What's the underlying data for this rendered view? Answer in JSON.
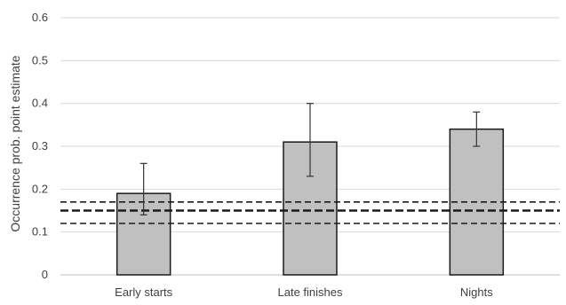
{
  "chart_data": {
    "type": "bar",
    "categories": [
      "Early starts",
      "Late finishes",
      "Nights"
    ],
    "values": [
      0.19,
      0.31,
      0.34
    ],
    "error_low": [
      0.14,
      0.23,
      0.3
    ],
    "error_high": [
      0.26,
      0.4,
      0.38
    ],
    "reference_lines": [
      {
        "value": 0.17,
        "style": "dashed"
      },
      {
        "value": 0.15,
        "style": "dashed-bold"
      },
      {
        "value": 0.12,
        "style": "dashed"
      }
    ],
    "title": "",
    "xlabel": "",
    "ylabel": "Occurrence prob. point estimate",
    "ylim": [
      0,
      0.6
    ],
    "yticks": [
      "0",
      "0.1",
      "0.2",
      "0.3",
      "0.4",
      "0.5",
      "0.6"
    ],
    "grid": true,
    "legend": "none",
    "colors": {
      "bar_fill": "#c0c0c0",
      "bar_stroke": "#1a1a1a",
      "grid": "#d9d9d9",
      "text": "#404040",
      "reference": "#1a1a1a"
    }
  }
}
